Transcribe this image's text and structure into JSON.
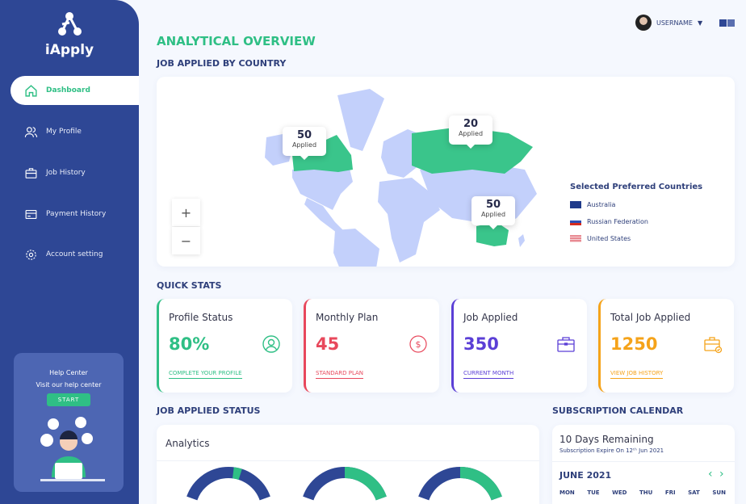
{
  "app": {
    "name": "iApply"
  },
  "sidebar": {
    "items": [
      {
        "label": "Dashboard",
        "icon": "home-icon",
        "active": true
      },
      {
        "label": "My Profile",
        "icon": "users-icon"
      },
      {
        "label": "Job History",
        "icon": "briefcase-icon"
      },
      {
        "label": "Payment History",
        "icon": "credit-card-icon"
      },
      {
        "label": "Account setting",
        "icon": "gear-icon"
      }
    ],
    "help": {
      "title": "Help Center",
      "subtitle": "Visit our help center",
      "button": "START"
    }
  },
  "header": {
    "username": "USERNAME",
    "language_icon": "translate-icon"
  },
  "main": {
    "title": "ANALYTICAL OVERVIEW",
    "map_title": "JOB APPLIED BY COUNTRY",
    "map": {
      "tooltips": [
        {
          "value": "50",
          "label": "Applied"
        },
        {
          "value": "20",
          "label": "Applied"
        },
        {
          "value": "50",
          "label": "Applied"
        }
      ],
      "zoom_in": "+",
      "zoom_out": "−",
      "legend_title": "Selected Preferred Countries",
      "countries": [
        "Australia",
        "Russian Federation",
        "United States"
      ],
      "land_color": "#c3d0fb",
      "highlight_color": "#3ac58b"
    },
    "quick_stats_title": "QUICK STATS",
    "stats": [
      {
        "label": "Profile Status",
        "value": "80%",
        "link": "COMPLETE YOUR PROFILE",
        "color": "#2fbf85"
      },
      {
        "label": "Monthly Plan",
        "value": "45",
        "link": "STANDARD PLAN",
        "color": "#e8485c"
      },
      {
        "label": "Job Applied",
        "value": "350",
        "link": "CURRENT MONTH",
        "color": "#5b3fd6"
      },
      {
        "label": "Total Job Applied",
        "value": "1250",
        "link": "VIEW JOB HISTORY",
        "color": "#f5a31a"
      }
    ],
    "status_title": "JOB APPLIED STATUS",
    "analytics_title": "Analytics",
    "donuts": [
      {
        "green_percent": 3
      },
      {
        "green_percent": 35
      },
      {
        "green_percent": 35
      }
    ],
    "calendar_title": "SUBSCRIPTION CALENDAR",
    "remaining": "10 Days Remaining",
    "expire": "Subscription Expire On 12ᵗʰ Jun 2021",
    "month": "JUNE 2021",
    "weekdays": [
      "MON",
      "TUE",
      "WED",
      "THU",
      "FRI",
      "SAT",
      "SUN"
    ]
  }
}
